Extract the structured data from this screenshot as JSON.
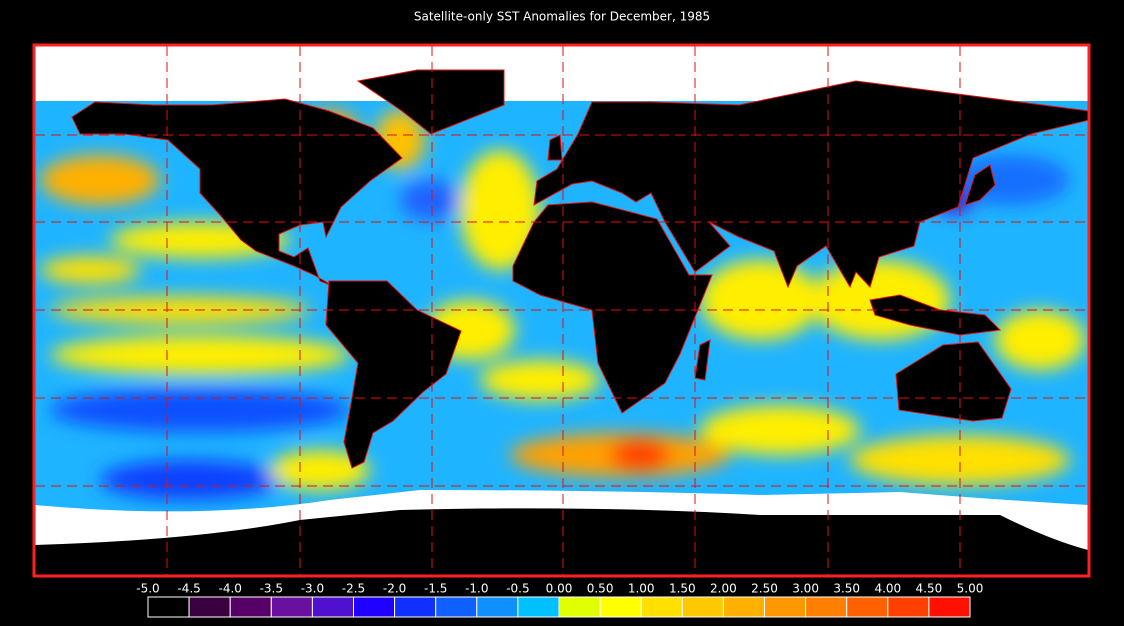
{
  "title": "Satellite-only SST Anomalies for December, 1985",
  "colorbar": {
    "ticks": [
      {
        "value": -5.0,
        "label": "-5.0"
      },
      -4.5,
      {
        "value": -4.0,
        "label": "-4.0"
      },
      -3.5,
      {
        "value": -3.0,
        "label": "-3.0"
      },
      -2.5,
      {
        "value": -2.0,
        "label": "-2.0"
      },
      -1.5,
      {
        "value": -1.0,
        "label": "-1.0"
      },
      -0.5,
      {
        "value": 0,
        "label": "0.00"
      },
      {
        "value": 0.5,
        "label": "0.50"
      },
      {
        "value": 1.0,
        "label": "1.00"
      },
      {
        "value": 1.5,
        "label": "1.50"
      },
      {
        "value": 2.0,
        "label": "2.00"
      },
      {
        "value": 2.5,
        "label": "2.50"
      },
      {
        "value": 3.0,
        "label": "3.00"
      },
      {
        "value": 3.5,
        "label": "3.50"
      },
      {
        "value": 4.0,
        "label": "4.00"
      },
      {
        "value": 4.5,
        "label": "4.50"
      },
      {
        "value": 5.0,
        "label": "5.00"
      }
    ],
    "colors": [
      "#000000",
      "#3a0040",
      "#560068",
      "#6a10a0",
      "#5010d0",
      "#2000ff",
      "#1030ff",
      "#1060ff",
      "#1090ff",
      "#00c0ff",
      "#e0ff00",
      "#ffff00",
      "#ffe000",
      "#ffc800",
      "#ffb000",
      "#ff9800",
      "#ff8000",
      "#ff6000",
      "#ff4000",
      "#ff1000"
    ]
  }
}
